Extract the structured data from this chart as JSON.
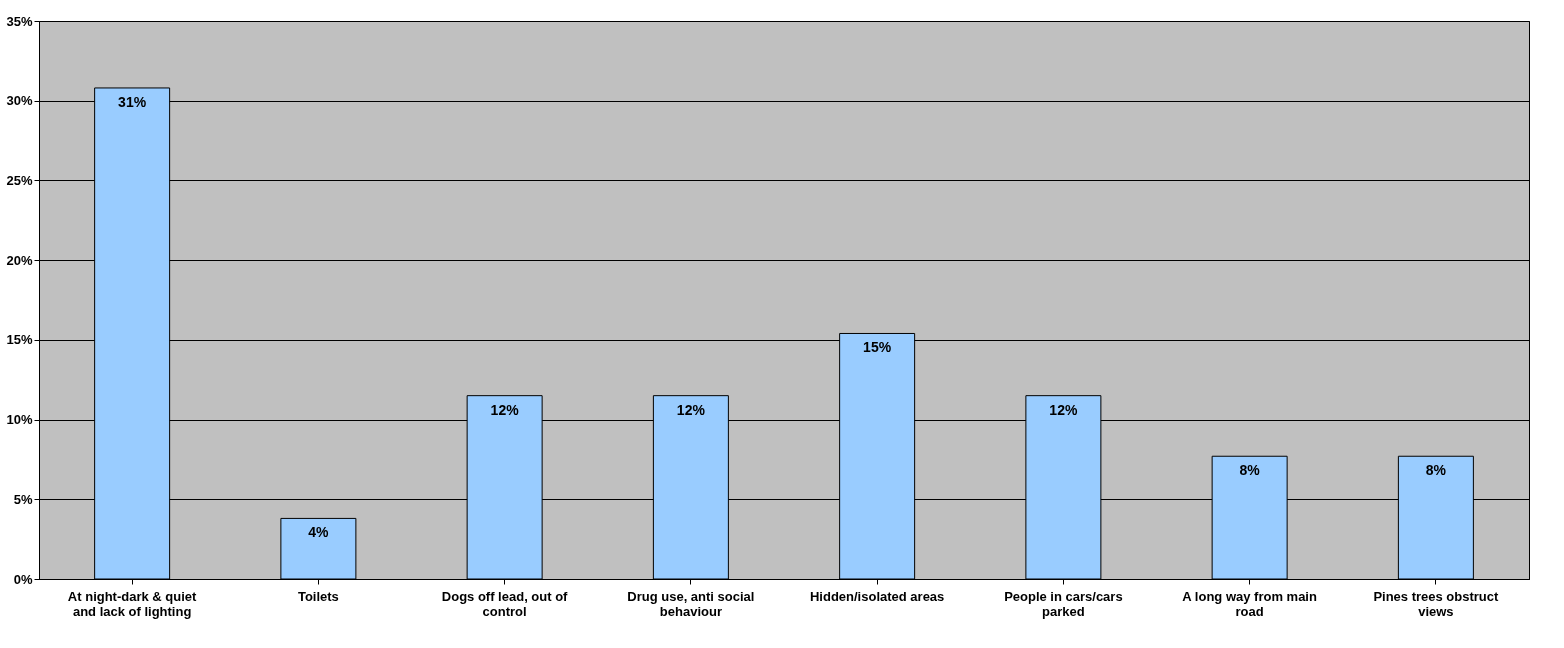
{
  "chart_data": {
    "type": "bar",
    "categories": [
      "At night-dark & quiet and lack of lighting",
      "Toilets",
      "Dogs off lead, out of control",
      "Drug use, anti social behaviour",
      "Hidden/isolated areas",
      "People in cars/cars parked",
      "A long way from main road",
      "Pines trees obstruct views"
    ],
    "values": [
      30.8,
      3.8,
      11.5,
      11.5,
      15.4,
      11.5,
      7.7,
      7.7
    ],
    "value_labels": [
      "31%",
      "4%",
      "12%",
      "12%",
      "15%",
      "12%",
      "8%",
      "8%"
    ],
    "color": "#99ccff",
    "ylim": [
      0,
      35
    ],
    "yticks": [
      {
        "value": 0,
        "label": "0%"
      },
      {
        "value": 5,
        "label": "5%"
      },
      {
        "value": 10,
        "label": "10%"
      },
      {
        "value": 15,
        "label": "15%"
      },
      {
        "value": 20,
        "label": "20%"
      },
      {
        "value": 25,
        "label": "25%"
      },
      {
        "value": 30,
        "label": "30%"
      },
      {
        "value": 35,
        "label": "35%"
      }
    ],
    "grid": "y"
  }
}
